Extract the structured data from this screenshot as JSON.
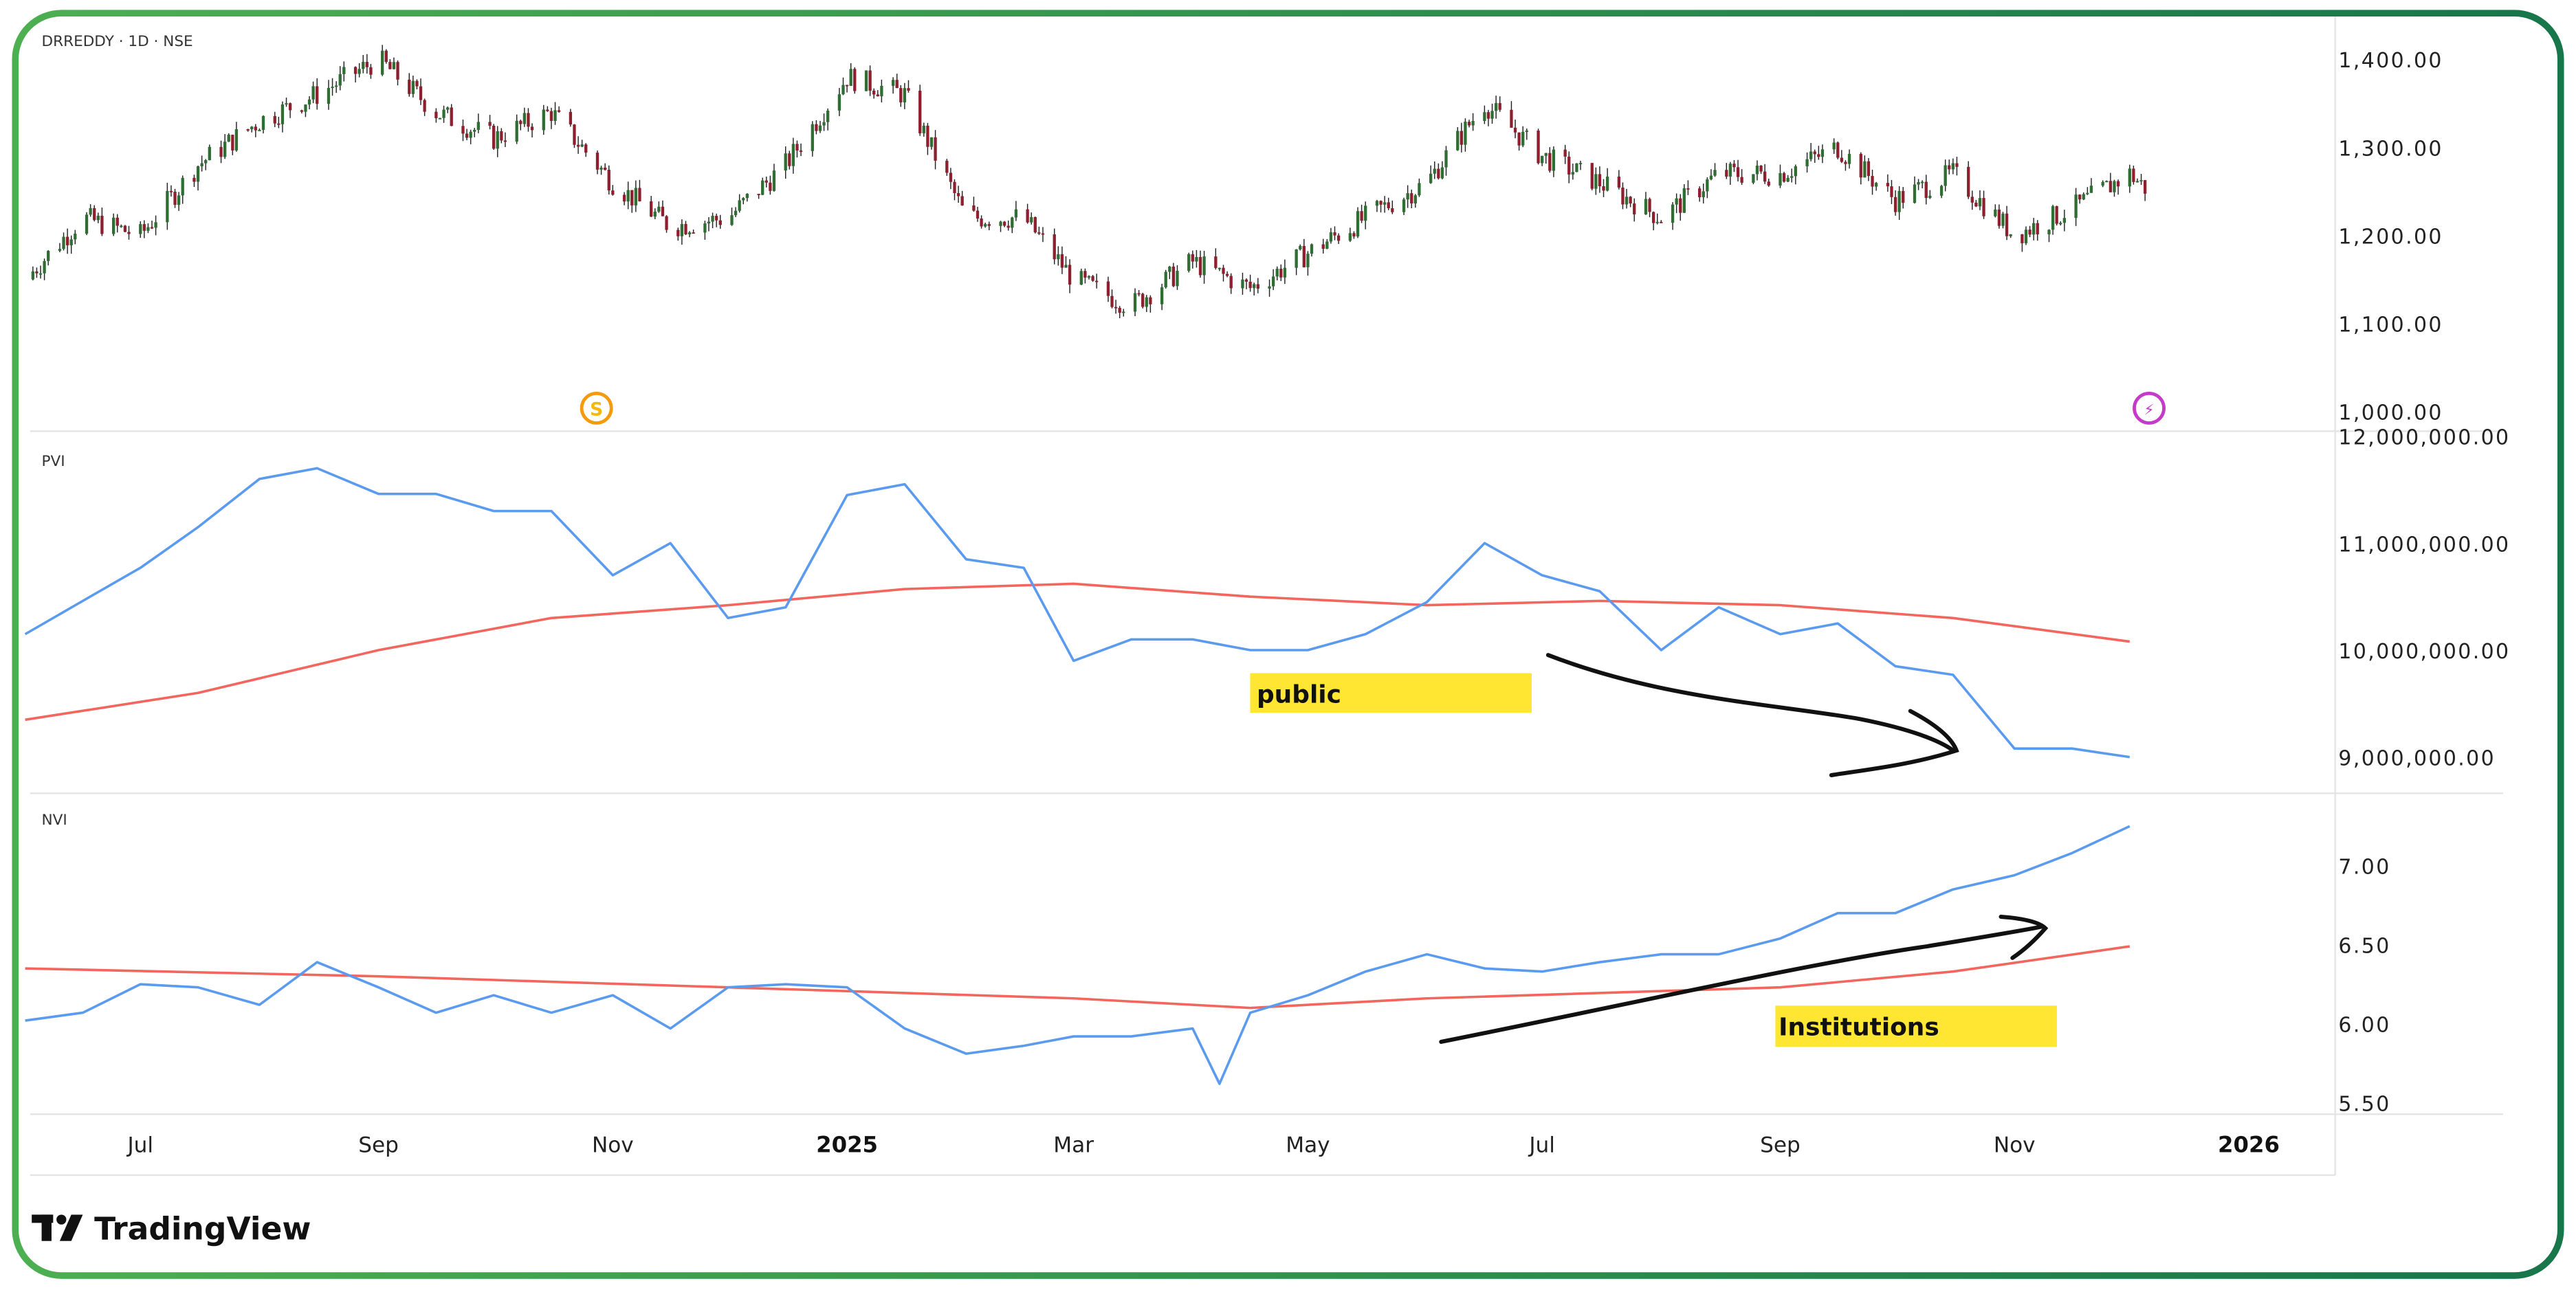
{
  "header": {
    "symbol_label": "DRREDDY · 1D · NSE"
  },
  "brand": {
    "name": "TradingView"
  },
  "colors": {
    "up": "#2f6e33",
    "down": "#8e1f2f",
    "indicator": "#5b9bef",
    "ma": "#f2665e",
    "highlight": "#ffe633",
    "frame_left": "#4caf50",
    "frame_right": "#17764a",
    "event_dividend": "#f59a0c",
    "event_earnings": "#c43bc8"
  },
  "events": [
    {
      "icon": "dividend-icon",
      "label": "S",
      "date": "2024-11-05"
    },
    {
      "icon": "earnings-lightning-icon",
      "label": "⚡",
      "date": "2025-12-06"
    }
  ],
  "annotations": {
    "public": "public",
    "institutions": "Institutions"
  },
  "chart_data": [
    {
      "type": "candlestick",
      "title": "DRREDDY · 1D · NSE",
      "ylim": [
        1000,
        1400
      ],
      "yticks": [
        "1,400.00",
        "1,300.00",
        "1,200.00",
        "1,100.00",
        "1,000.00"
      ],
      "series": [
        {
          "values": [
            [
              "2024-06-01",
              1150
            ],
            [
              "2024-06-16",
              1220
            ],
            [
              "2024-07-01",
              1200
            ],
            [
              "2024-07-16",
              1280
            ],
            [
              "2024-08-01",
              1330
            ],
            [
              "2024-08-16",
              1360
            ],
            [
              "2024-09-01",
              1400
            ],
            [
              "2024-09-16",
              1340
            ],
            [
              "2024-10-01",
              1310
            ],
            [
              "2024-10-16",
              1340
            ],
            [
              "2024-11-01",
              1260
            ],
            [
              "2024-11-16",
              1210
            ],
            [
              "2024-12-01",
              1220
            ],
            [
              "2024-12-16",
              1280
            ],
            [
              "2025-01-01",
              1380
            ],
            [
              "2025-01-16",
              1360
            ],
            [
              "2025-02-01",
              1220
            ],
            [
              "2025-02-16",
              1220
            ],
            [
              "2025-03-01",
              1150
            ],
            [
              "2025-03-16",
              1120
            ],
            [
              "2025-04-01",
              1170
            ],
            [
              "2025-04-16",
              1140
            ],
            [
              "2025-05-01",
              1180
            ],
            [
              "2025-05-16",
              1220
            ],
            [
              "2025-06-01",
              1260
            ],
            [
              "2025-06-16",
              1350
            ],
            [
              "2025-07-01",
              1290
            ],
            [
              "2025-07-16",
              1260
            ],
            [
              "2025-08-01",
              1220
            ],
            [
              "2025-08-16",
              1270
            ],
            [
              "2025-09-01",
              1270
            ],
            [
              "2025-09-16",
              1300
            ],
            [
              "2025-10-01",
              1240
            ],
            [
              "2025-10-16",
              1270
            ],
            [
              "2025-11-01",
              1200
            ],
            [
              "2025-11-16",
              1230
            ],
            [
              "2025-12-01",
              1270
            ],
            [
              "2025-12-06",
              1250
            ]
          ]
        }
      ]
    },
    {
      "type": "line",
      "title": "PVI",
      "ylim": [
        9000000,
        12000000
      ],
      "yticks": [
        "12,000,000.00",
        "11,000,000.00",
        "10,000,000.00",
        "9,000,000.00"
      ],
      "series": [
        {
          "role": "indicator",
          "values": [
            [
              "2024-06-01",
              10150000
            ],
            [
              "2024-06-16",
              10460000
            ],
            [
              "2024-07-01",
              10770000
            ],
            [
              "2024-07-16",
              11150000
            ],
            [
              "2024-08-01",
              11600000
            ],
            [
              "2024-08-16",
              11700000
            ],
            [
              "2024-09-01",
              11460000
            ],
            [
              "2024-09-16",
              11460000
            ],
            [
              "2024-10-01",
              11300000
            ],
            [
              "2024-10-16",
              11300000
            ],
            [
              "2024-11-01",
              10700000
            ],
            [
              "2024-11-16",
              11000000
            ],
            [
              "2024-12-01",
              10300000
            ],
            [
              "2024-12-16",
              10400000
            ],
            [
              "2025-01-01",
              11450000
            ],
            [
              "2025-01-16",
              11550000
            ],
            [
              "2025-02-01",
              10850000
            ],
            [
              "2025-02-16",
              10770000
            ],
            [
              "2025-03-01",
              9900000
            ],
            [
              "2025-03-16",
              10100000
            ],
            [
              "2025-04-01",
              10100000
            ],
            [
              "2025-04-16",
              10000000
            ],
            [
              "2025-05-01",
              10000000
            ],
            [
              "2025-05-16",
              10150000
            ],
            [
              "2025-06-01",
              10450000
            ],
            [
              "2025-06-16",
              11000000
            ],
            [
              "2025-07-01",
              10700000
            ],
            [
              "2025-07-16",
              10550000
            ],
            [
              "2025-08-01",
              10000000
            ],
            [
              "2025-08-16",
              10400000
            ],
            [
              "2025-09-01",
              10150000
            ],
            [
              "2025-09-16",
              10250000
            ],
            [
              "2025-10-01",
              9850000
            ],
            [
              "2025-10-16",
              9770000
            ],
            [
              "2025-11-01",
              9080000
            ],
            [
              "2025-11-16",
              9080000
            ],
            [
              "2025-12-01",
              9000000
            ]
          ]
        },
        {
          "role": "moving-average",
          "values": [
            [
              "2024-06-01",
              9350000
            ],
            [
              "2024-07-16",
              9600000
            ],
            [
              "2024-09-01",
              10000000
            ],
            [
              "2024-10-16",
              10300000
            ],
            [
              "2024-12-01",
              10420000
            ],
            [
              "2025-01-16",
              10570000
            ],
            [
              "2025-03-01",
              10620000
            ],
            [
              "2025-04-16",
              10500000
            ],
            [
              "2025-06-01",
              10420000
            ],
            [
              "2025-07-16",
              10460000
            ],
            [
              "2025-09-01",
              10420000
            ],
            [
              "2025-10-16",
              10300000
            ],
            [
              "2025-12-01",
              10080000
            ]
          ]
        }
      ]
    },
    {
      "type": "line",
      "title": "NVI",
      "ylim": [
        5.5,
        7.25
      ],
      "yticks": [
        "7.00",
        "6.50",
        "6.00",
        "5.50"
      ],
      "series": [
        {
          "role": "indicator",
          "values": [
            [
              "2024-06-01",
              6.02
            ],
            [
              "2024-06-16",
              6.07
            ],
            [
              "2024-07-01",
              6.25
            ],
            [
              "2024-07-16",
              6.23
            ],
            [
              "2024-08-01",
              6.12
            ],
            [
              "2024-08-16",
              6.39
            ],
            [
              "2024-09-01",
              6.23
            ],
            [
              "2024-09-16",
              6.07
            ],
            [
              "2024-10-01",
              6.18
            ],
            [
              "2024-10-16",
              6.07
            ],
            [
              "2024-11-01",
              6.18
            ],
            [
              "2024-11-16",
              5.97
            ],
            [
              "2024-12-01",
              6.23
            ],
            [
              "2024-12-16",
              6.25
            ],
            [
              "2025-01-01",
              6.23
            ],
            [
              "2025-01-16",
              5.97
            ],
            [
              "2025-02-01",
              5.81
            ],
            [
              "2025-02-16",
              5.86
            ],
            [
              "2025-03-01",
              5.92
            ],
            [
              "2025-03-16",
              5.92
            ],
            [
              "2025-04-01",
              5.97
            ],
            [
              "2025-04-08",
              5.62
            ],
            [
              "2025-04-16",
              6.07
            ],
            [
              "2025-05-01",
              6.18
            ],
            [
              "2025-05-16",
              6.33
            ],
            [
              "2025-06-01",
              6.44
            ],
            [
              "2025-06-16",
              6.35
            ],
            [
              "2025-07-01",
              6.33
            ],
            [
              "2025-07-16",
              6.39
            ],
            [
              "2025-08-01",
              6.44
            ],
            [
              "2025-08-16",
              6.44
            ],
            [
              "2025-09-01",
              6.54
            ],
            [
              "2025-09-16",
              6.7
            ],
            [
              "2025-10-01",
              6.7
            ],
            [
              "2025-10-16",
              6.85
            ],
            [
              "2025-11-01",
              6.94
            ],
            [
              "2025-11-16",
              7.08
            ],
            [
              "2025-12-01",
              7.25
            ]
          ]
        },
        {
          "role": "moving-average",
          "values": [
            [
              "2024-06-01",
              6.35
            ],
            [
              "2024-09-01",
              6.3
            ],
            [
              "2024-12-01",
              6.23
            ],
            [
              "2025-03-01",
              6.16
            ],
            [
              "2025-04-16",
              6.1
            ],
            [
              "2025-06-01",
              6.16
            ],
            [
              "2025-09-01",
              6.23
            ],
            [
              "2025-10-16",
              6.33
            ],
            [
              "2025-12-01",
              6.49
            ]
          ]
        }
      ]
    }
  ],
  "x_axis": {
    "ticks": [
      {
        "label": "Jul",
        "date": "2024-07-01",
        "bold": false
      },
      {
        "label": "Sep",
        "date": "2024-09-01",
        "bold": false
      },
      {
        "label": "Nov",
        "date": "2024-11-01",
        "bold": false
      },
      {
        "label": "2025",
        "date": "2025-01-01",
        "bold": true
      },
      {
        "label": "Mar",
        "date": "2025-03-01",
        "bold": false
      },
      {
        "label": "May",
        "date": "2025-05-01",
        "bold": false
      },
      {
        "label": "Jul",
        "date": "2025-07-01",
        "bold": false
      },
      {
        "label": "Sep",
        "date": "2025-09-01",
        "bold": false
      },
      {
        "label": "Nov",
        "date": "2025-11-01",
        "bold": false
      },
      {
        "label": "2026",
        "date": "2026-01-01",
        "bold": true
      }
    ]
  }
}
